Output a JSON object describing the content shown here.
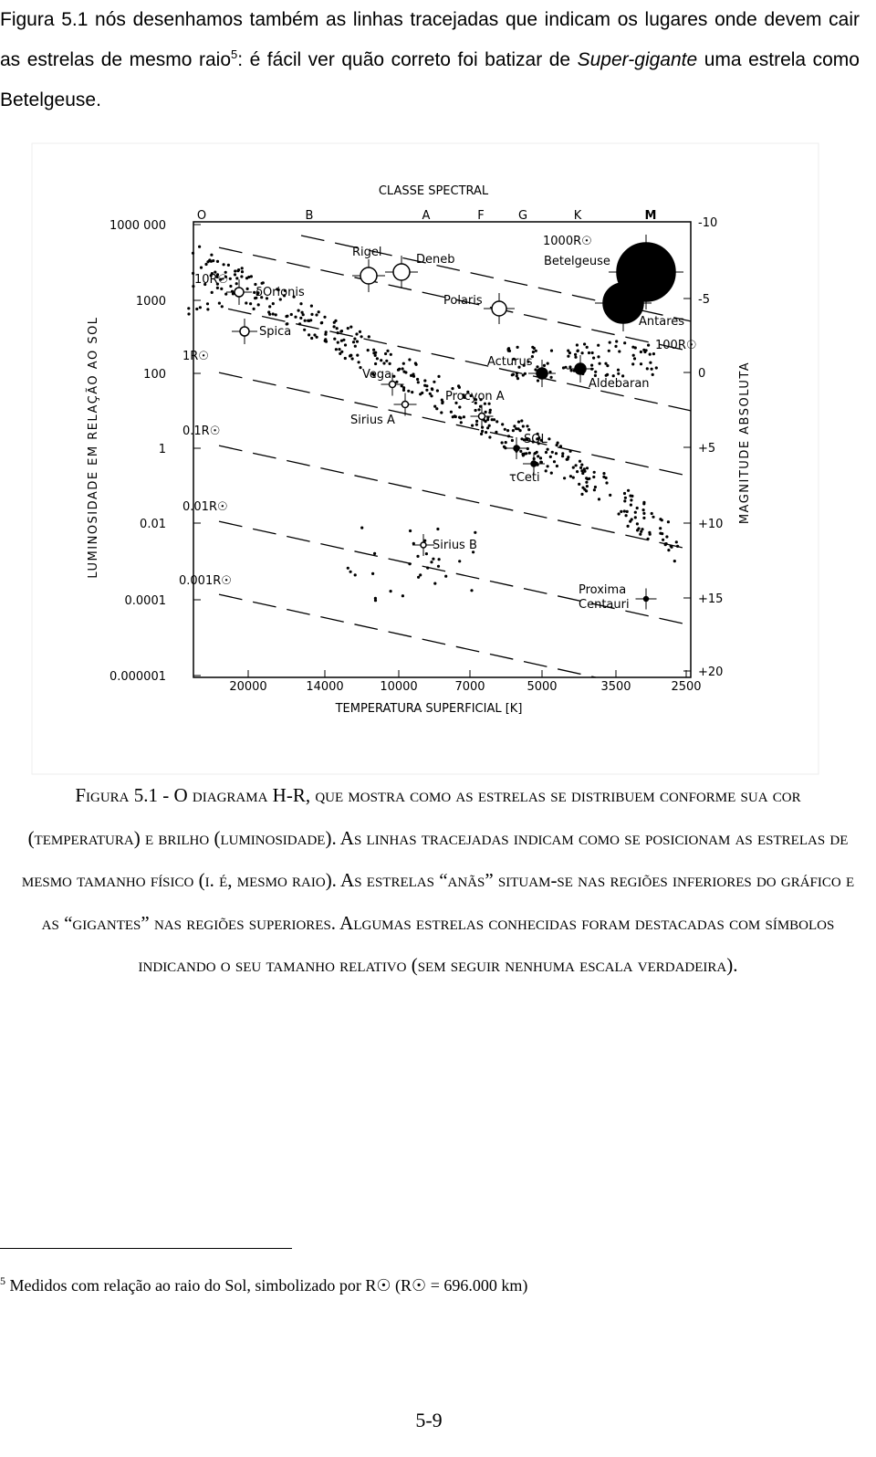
{
  "paragraph": {
    "before": "Figura 5.1 nós desenhamos também as linhas tracejadas que indicam os lugares onde devem cair as estrelas de mesmo raio",
    "footnote_ref": "5",
    "middle": ": é fácil ver quão correto foi batizar de ",
    "emphasis": "Super-gigante",
    "after": " uma estrela como Betelgeuse."
  },
  "figure": {
    "title": "CLASSE SPECTRAL",
    "spectral_classes": [
      "O",
      "B",
      "A",
      "F",
      "G",
      "K",
      "M"
    ],
    "luminosity_labels": [
      "1000 000",
      "1000",
      "100",
      "1",
      "0.01",
      "0.0001",
      "0.000001"
    ],
    "magnitude_labels": [
      "-10",
      "-5",
      "0",
      "+5",
      "+10",
      "+15",
      "+20"
    ],
    "temperature_labels": [
      "20000",
      "14000",
      "10000",
      "7000",
      "5000",
      "3500",
      "2500"
    ],
    "y_label": "LUMINOSIDADE EM RELAÇÃO AO SOL",
    "y2_label": "MAGNITUDE ABSOLUTA",
    "x_label": "TEMPERATURA SUPERFICIAL [K]",
    "radius_lines": [
      "1000R☉",
      "100R☉",
      "10R☉",
      "1R☉",
      "0.1R☉",
      "0.01R☉",
      "0.001R☉"
    ],
    "stars": [
      {
        "label": "Betelgeuse"
      },
      {
        "label": "Antares"
      },
      {
        "label": "Rigel"
      },
      {
        "label": "Deneb"
      },
      {
        "label": "Polaris"
      },
      {
        "label": "δOrionis"
      },
      {
        "label": "Spica"
      },
      {
        "label": "Vega"
      },
      {
        "label": "Sirius A"
      },
      {
        "label": "Procyon A"
      },
      {
        "label": "Acturus"
      },
      {
        "label": "Aldebaran"
      },
      {
        "label": "SOL"
      },
      {
        "label": "τCeti"
      },
      {
        "label": "Sirius B"
      },
      {
        "label": [
          "Proxima",
          "Centauri"
        ]
      }
    ]
  },
  "caption": "Figura 5.1 - O diagrama H-R, que mostra como as estrelas se distribuem conforme sua cor (temperatura) e brilho (luminosidade). As linhas tracejadas indicam como se posicionam as estrelas de mesmo tamanho físico (i. é, mesmo raio). As estrelas “anãs” situam-se nas regiões inferiores do gráfico e as “gigantes” nas regiões superiores. Algumas estrelas conhecidas foram destacadas com símbolos indicando o seu tamanho relativo (sem seguir nenhuma escala verdadeira).",
  "footnote": {
    "mark": "5",
    "text": "Medidos com relação ao raio do Sol, simbolizado por R☉ (R☉ = 696.000 km)"
  },
  "page_number": "5-9"
}
